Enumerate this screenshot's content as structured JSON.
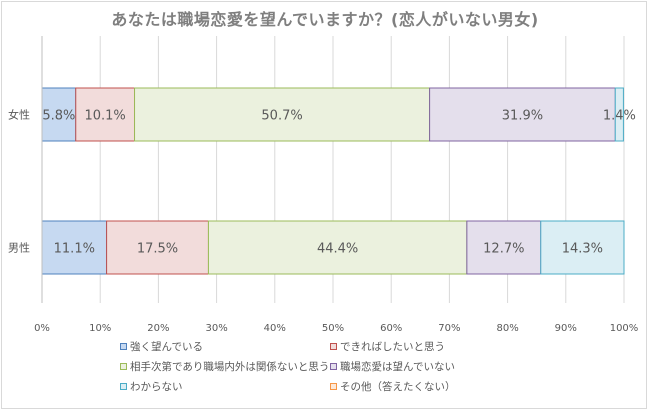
{
  "chart_data": {
    "type": "bar",
    "orientation": "horizontal-stacked-100",
    "title": "あなたは職場恋愛を望んでいますか？(恋人がいない男女)",
    "categories": [
      "女性",
      "男性"
    ],
    "series": [
      {
        "name": "強く望んでいる",
        "values": [
          5.8,
          11.1
        ],
        "labels": [
          "5.8%",
          "11.1%"
        ],
        "color": "#c6d9f1",
        "edge": "#4f81bd"
      },
      {
        "name": "できればしたいと思う",
        "values": [
          10.1,
          17.5
        ],
        "labels": [
          "10.1%",
          "17.5%"
        ],
        "color": "#f2dcdb",
        "edge": "#c0504d"
      },
      {
        "name": "相手次第であり職場内外は関係ないと思う",
        "values": [
          50.7,
          44.4
        ],
        "labels": [
          "50.7%",
          "44.4%"
        ],
        "color": "#ebf1de",
        "edge": "#9bbb59"
      },
      {
        "name": "職場恋愛は望んでいない",
        "values": [
          31.9,
          12.7
        ],
        "labels": [
          "31.9%",
          "12.7%"
        ],
        "color": "#e4dfec",
        "edge": "#8064a2"
      },
      {
        "name": "わからない",
        "values": [
          1.4,
          14.3
        ],
        "labels": [
          "1.4%",
          "14.3%"
        ],
        "color": "#dbeef4",
        "edge": "#4bacc6"
      },
      {
        "name": "その他（答えたくない）",
        "values": [
          0,
          0
        ],
        "labels": [
          "",
          ""
        ],
        "color": "#fde9d9",
        "edge": "#f79646"
      }
    ],
    "xlim": [
      0,
      100
    ],
    "xticks": [
      "0%",
      "10%",
      "20%",
      "30%",
      "40%",
      "50%",
      "60%",
      "70%",
      "80%",
      "90%",
      "100%"
    ],
    "grid": true,
    "legend_position": "bottom"
  }
}
